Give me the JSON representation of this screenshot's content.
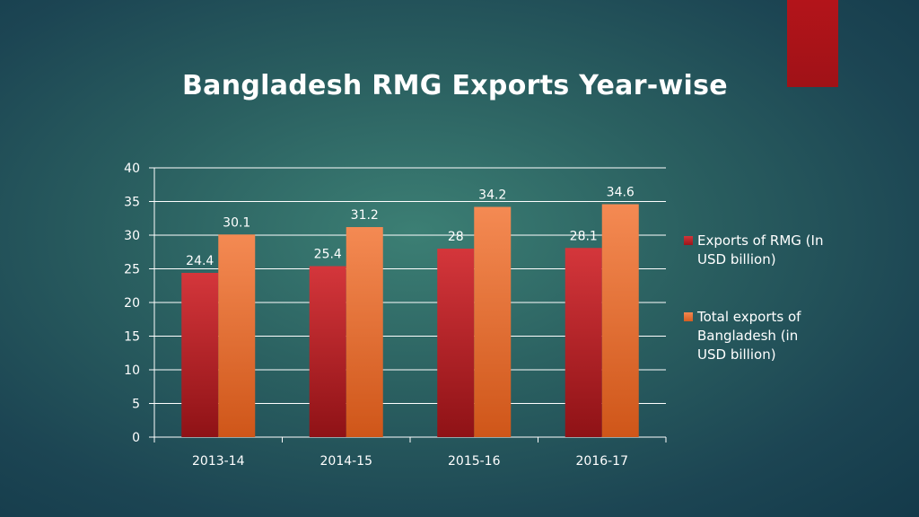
{
  "slide": {
    "title": "Bangladesh RMG Exports Year-wise"
  },
  "colors": {
    "accent": "#b3141a",
    "series_rmg": "#c9292e",
    "series_total": "#ea7a40",
    "text": "#ffffff"
  },
  "chart_data": {
    "type": "bar",
    "title": "Bangladesh RMG Exports Year-wise",
    "categories": [
      "2013-14",
      "2014-15",
      "2015-16",
      "2016-17"
    ],
    "series": [
      {
        "name": "Exports of RMG (In USD billion)",
        "values": [
          24.4,
          25.4,
          28,
          28.1
        ]
      },
      {
        "name": "Total exports of Bangladesh (in USD billion)",
        "values": [
          30.1,
          31.2,
          34.2,
          34.6
        ]
      }
    ],
    "data_labels": [
      [
        "24.4",
        "25.4",
        "28",
        "28.1"
      ],
      [
        "30.1",
        "31.2",
        "34.2",
        "34.6"
      ]
    ],
    "ylim": [
      0,
      40
    ],
    "yticks": [
      "0",
      "5",
      "10",
      "15",
      "20",
      "25",
      "30",
      "35",
      "40"
    ],
    "grid": true,
    "legend_position": "right"
  }
}
